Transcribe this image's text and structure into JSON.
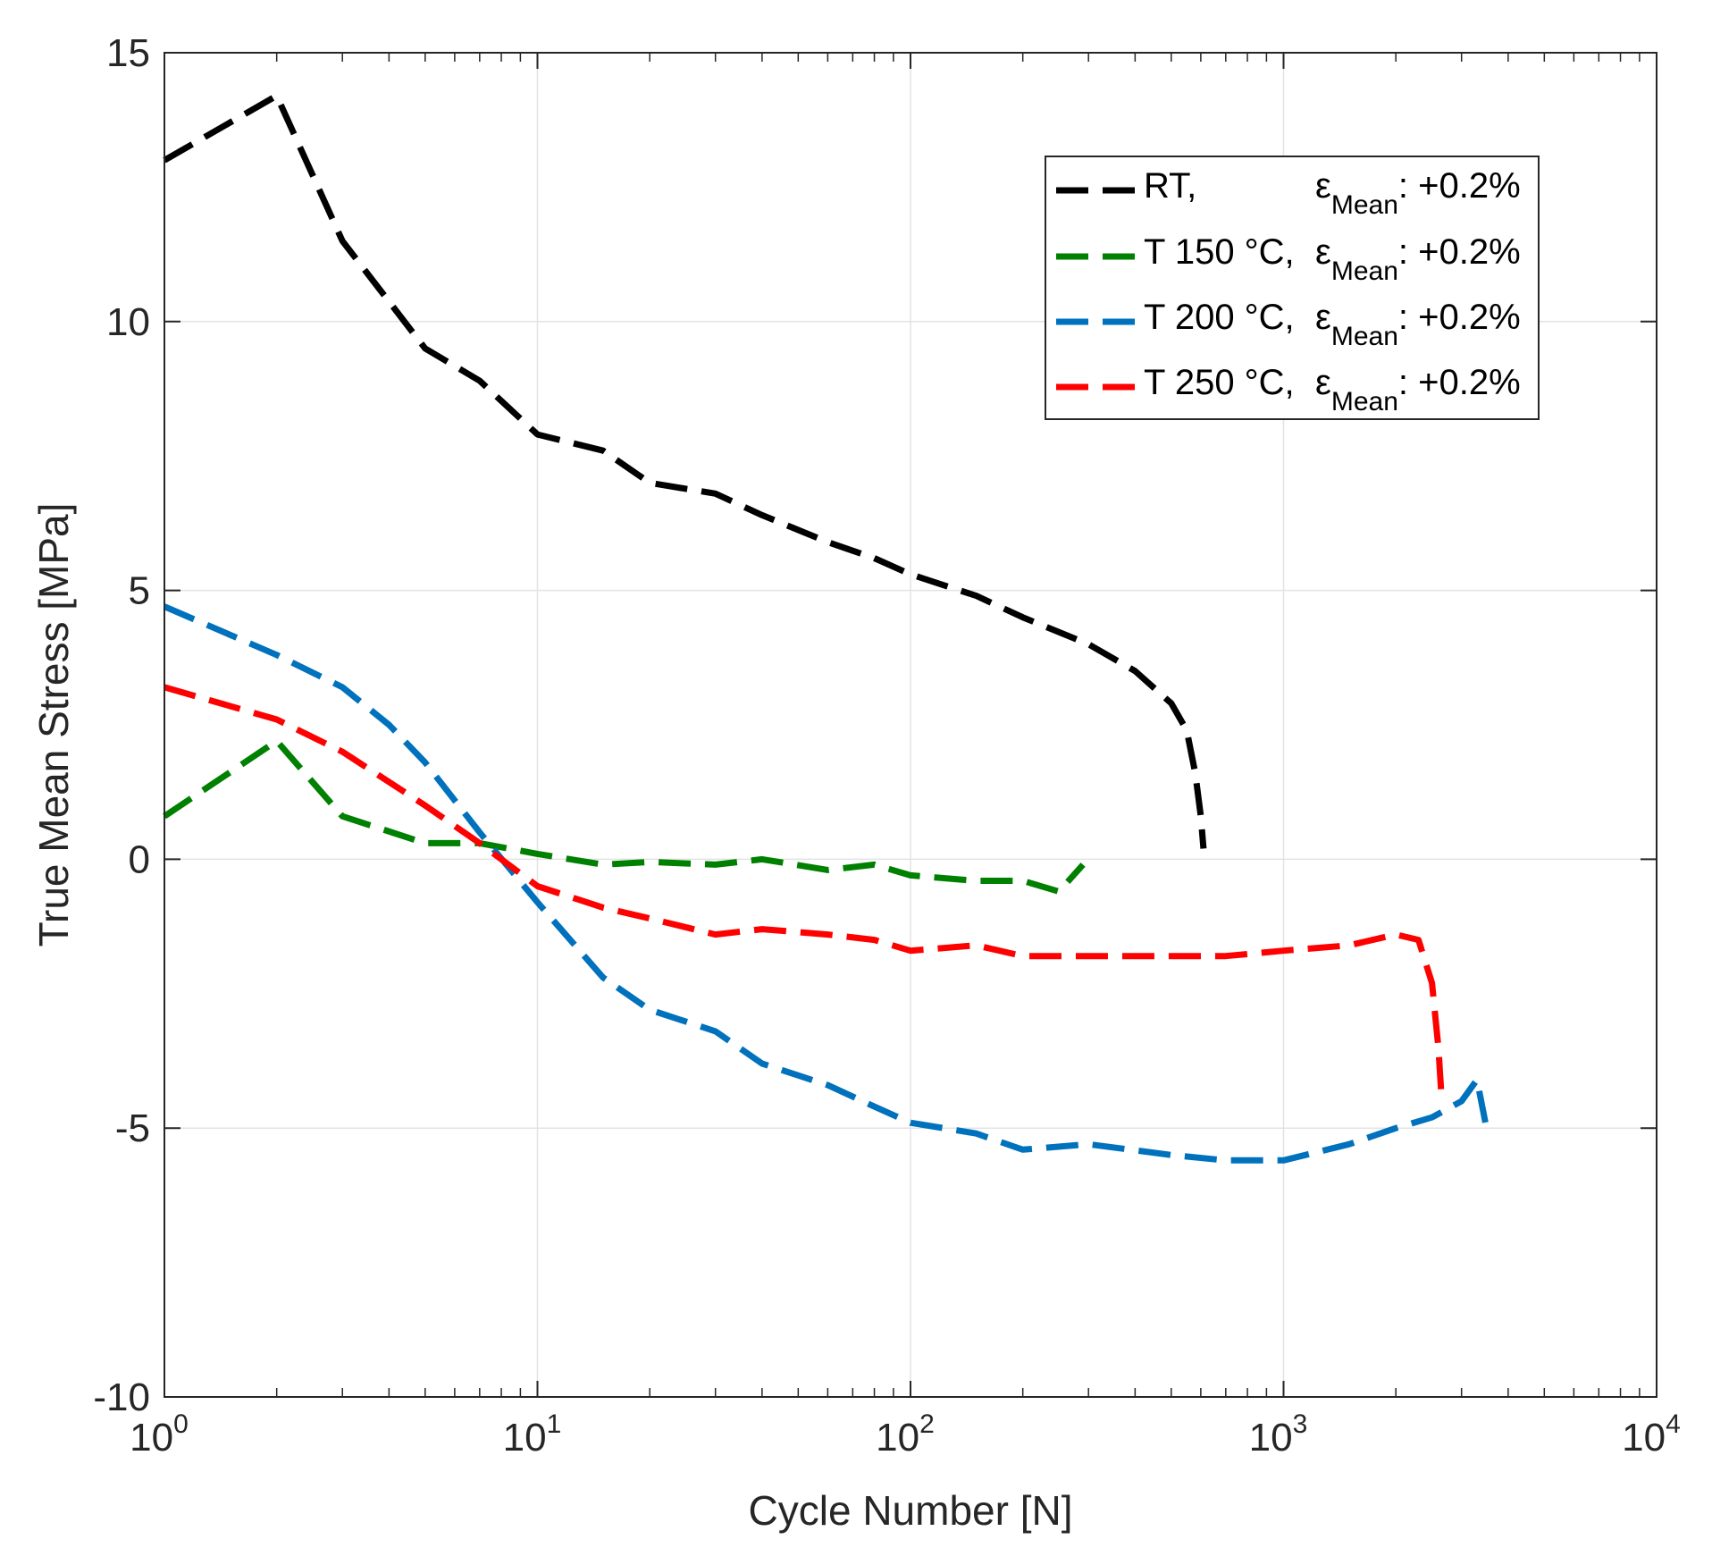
{
  "chart_data": {
    "type": "line",
    "title": "",
    "xlabel": "Cycle Number [N]",
    "ylabel": "True Mean Stress [MPa]",
    "xscale": "log",
    "xlim": [
      1,
      10000
    ],
    "ylim": [
      -10,
      15
    ],
    "grid": true,
    "legend_position": "top-right",
    "x_ticks": [
      {
        "base": "10",
        "exp": "0"
      },
      {
        "base": "10",
        "exp": "1"
      },
      {
        "base": "10",
        "exp": "2"
      },
      {
        "base": "10",
        "exp": "3"
      },
      {
        "base": "10",
        "exp": "4"
      }
    ],
    "y_ticks": [
      15,
      10,
      5,
      0,
      -5,
      -10
    ],
    "y_tick_labels": [
      "15",
      "10",
      "5",
      "0",
      "-5",
      "-10"
    ],
    "series": [
      {
        "name": "RT",
        "legend_prefix": "RT,",
        "legend_symbol": "ε",
        "legend_sub": "Mean",
        "legend_suffix": ": +0.2%",
        "color": "#000000",
        "x": [
          1,
          2,
          3,
          5,
          7,
          10,
          15,
          20,
          30,
          40,
          60,
          80,
          100,
          150,
          200,
          300,
          400,
          500,
          550,
          580,
          600,
          610
        ],
        "y": [
          13.0,
          14.2,
          11.5,
          9.5,
          8.9,
          7.9,
          7.6,
          7.0,
          6.8,
          6.4,
          5.9,
          5.6,
          5.3,
          4.9,
          4.5,
          4.0,
          3.5,
          2.9,
          2.4,
          1.6,
          0.8,
          0.2
        ]
      },
      {
        "name": "T 150 °C",
        "legend_prefix": "T 150 °C,",
        "legend_symbol": "ε",
        "legend_sub": "Mean",
        "legend_suffix": ": +0.2%",
        "color": "#008000",
        "x": [
          1,
          2,
          3,
          5,
          7,
          10,
          15,
          20,
          30,
          40,
          60,
          80,
          100,
          150,
          200,
          250,
          290
        ],
        "y": [
          0.8,
          2.2,
          0.8,
          0.3,
          0.3,
          0.1,
          -0.1,
          -0.05,
          -0.1,
          0.0,
          -0.2,
          -0.1,
          -0.3,
          -0.4,
          -0.4,
          -0.6,
          -0.1
        ]
      },
      {
        "name": "T 200 °C",
        "legend_prefix": "T 200 °C,",
        "legend_symbol": "ε",
        "legend_sub": "Mean",
        "legend_suffix": ": +0.2%",
        "color": "#0072BD",
        "x": [
          1,
          2,
          3,
          4,
          5,
          7,
          10,
          15,
          20,
          30,
          40,
          60,
          80,
          100,
          150,
          200,
          300,
          500,
          700,
          1000,
          1500,
          2000,
          2500,
          3000,
          3300,
          3500
        ],
        "y": [
          4.7,
          3.8,
          3.2,
          2.5,
          1.8,
          0.5,
          -0.8,
          -2.2,
          -2.8,
          -3.2,
          -3.8,
          -4.2,
          -4.6,
          -4.9,
          -5.1,
          -5.4,
          -5.3,
          -5.5,
          -5.6,
          -5.6,
          -5.3,
          -5.0,
          -4.8,
          -4.5,
          -4.1,
          -5.0
        ]
      },
      {
        "name": "T 250 °C",
        "legend_prefix": "T 250 °C,",
        "legend_symbol": "ε",
        "legend_sub": "Mean",
        "legend_suffix": ": +0.2%",
        "color": "#FF0000",
        "x": [
          1,
          2,
          3,
          5,
          7,
          10,
          15,
          20,
          30,
          40,
          60,
          80,
          100,
          150,
          200,
          300,
          500,
          700,
          1000,
          1500,
          2000,
          2300,
          2500,
          2600,
          2650
        ],
        "y": [
          3.2,
          2.6,
          2.0,
          1.0,
          0.3,
          -0.5,
          -0.9,
          -1.1,
          -1.4,
          -1.3,
          -1.4,
          -1.5,
          -1.7,
          -1.6,
          -1.8,
          -1.8,
          -1.8,
          -1.8,
          -1.7,
          -1.6,
          -1.4,
          -1.5,
          -2.3,
          -3.5,
          -4.4
        ]
      }
    ]
  }
}
